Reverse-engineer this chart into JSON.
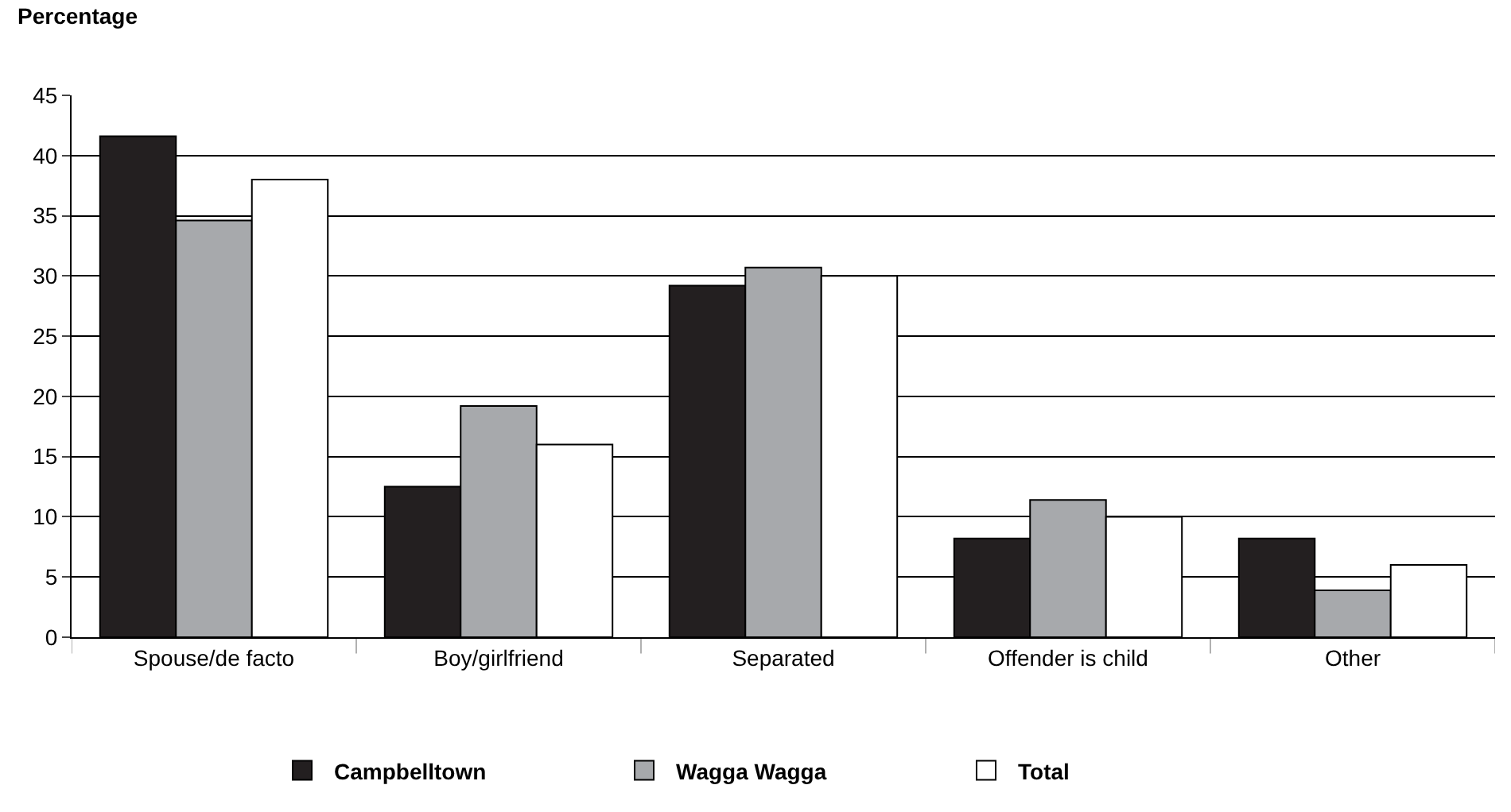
{
  "chart_data": {
    "type": "bar",
    "ylabel": "Percentage",
    "categories": [
      "Spouse/de facto",
      "Boy/girlfriend",
      "Separated",
      "Offender is child",
      "Other"
    ],
    "series": [
      {
        "name": "Campbelltown",
        "color": "#231f20",
        "values": [
          41.6,
          12.5,
          29.2,
          8.2,
          8.2
        ]
      },
      {
        "name": "Wagga Wagga",
        "color": "#a7a9ac",
        "values": [
          34.6,
          19.2,
          30.7,
          11.4,
          3.9
        ]
      },
      {
        "name": "Total",
        "color": "#ffffff",
        "values": [
          38.0,
          16.0,
          30.0,
          10.0,
          6.0
        ]
      }
    ],
    "ylim": [
      0,
      45
    ],
    "yticks": [
      0,
      5,
      10,
      15,
      20,
      25,
      30,
      35,
      40,
      45
    ],
    "grid": "y",
    "legend": "bottom"
  }
}
